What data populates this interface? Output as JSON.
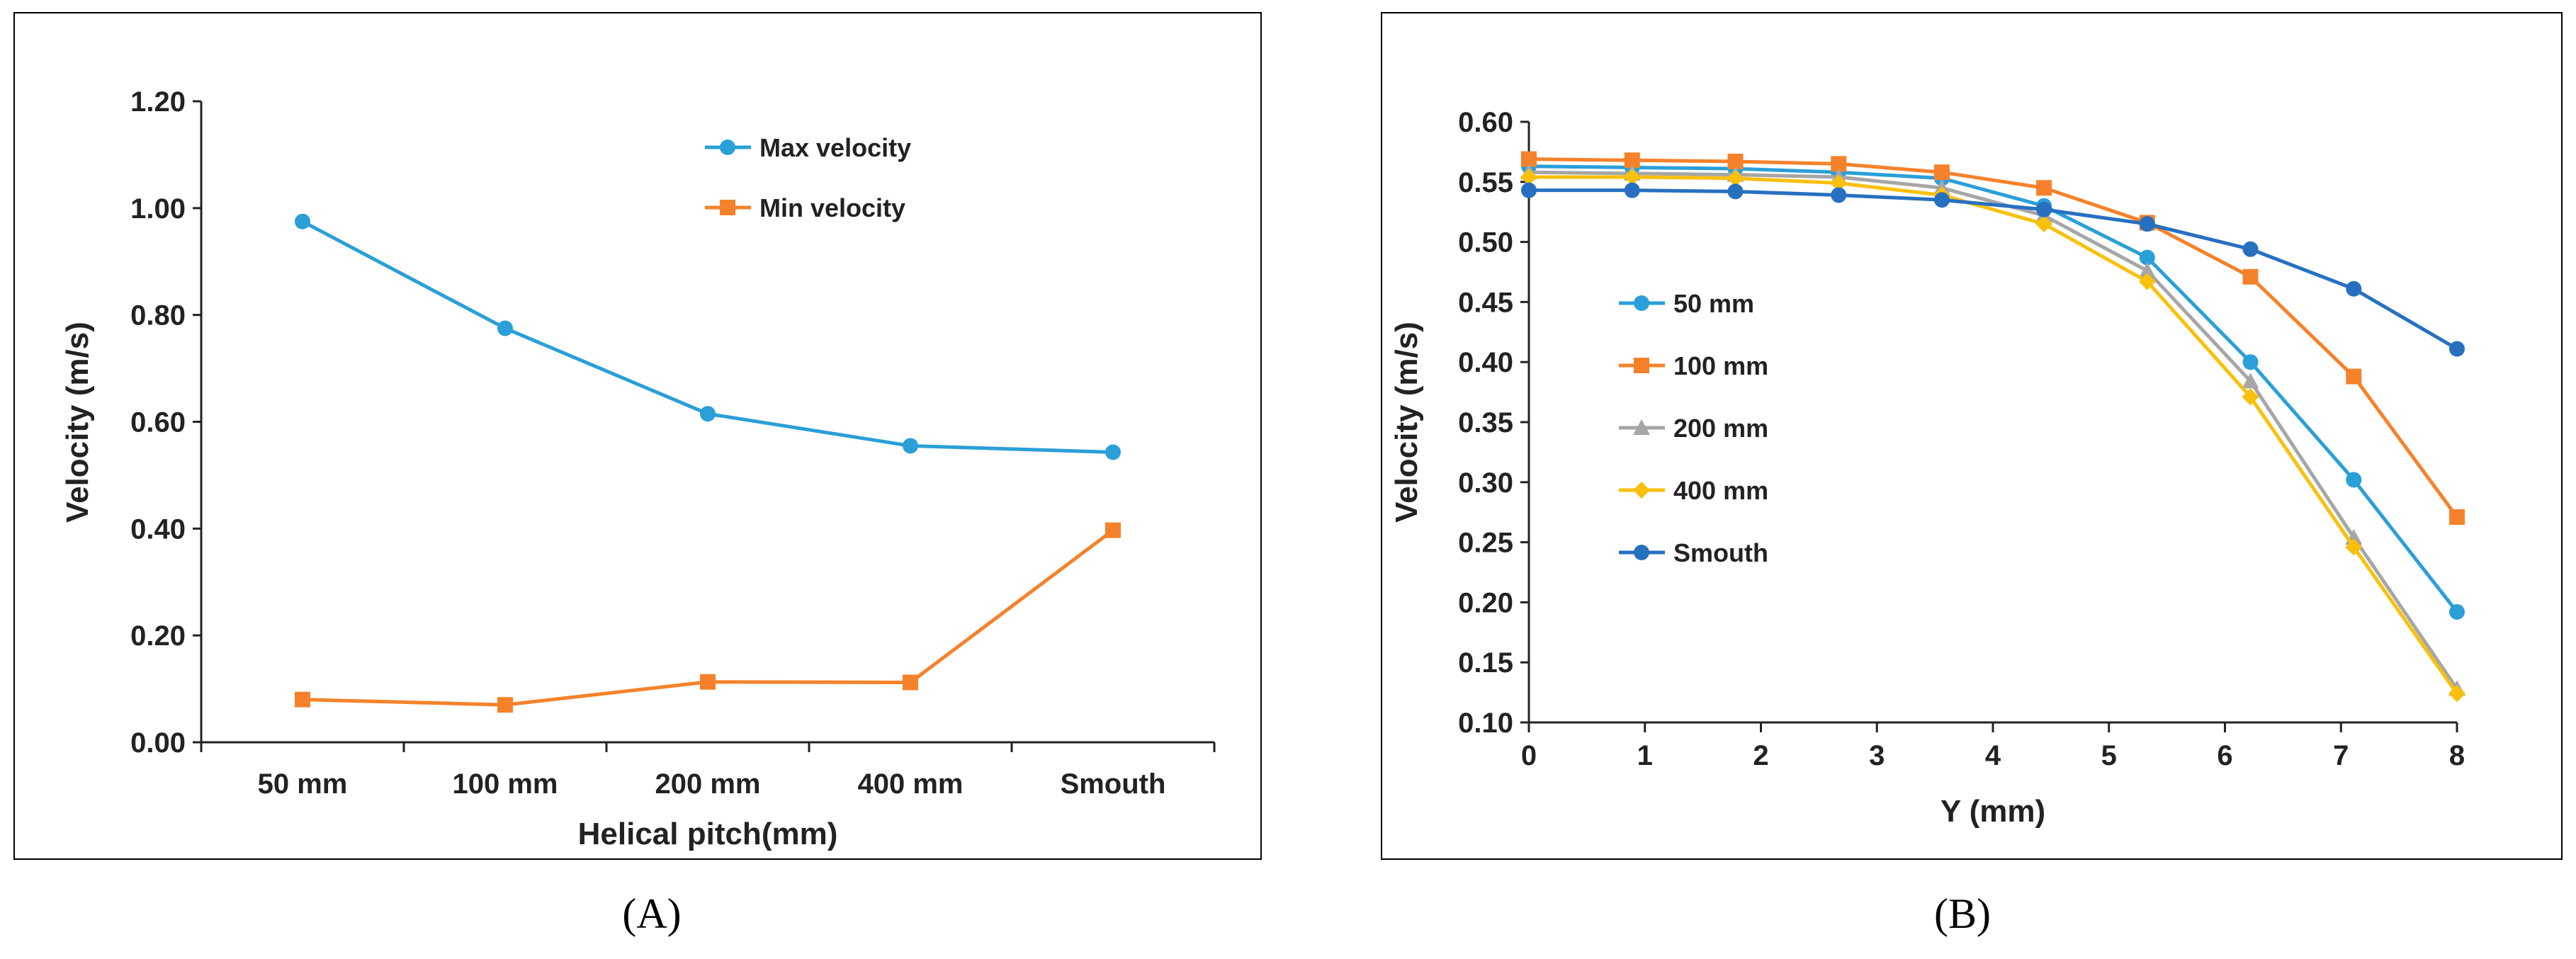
{
  "chart_data": [
    {
      "type": "line",
      "panel_label": "(A)",
      "title": "",
      "xlabel": "Helical pitch(mm)",
      "ylabel": "Velocity (m/s)",
      "categories": [
        "50 mm",
        "100 mm",
        "200 mm",
        "400 mm",
        "Smouth"
      ],
      "ylim": [
        0,
        1.2
      ],
      "yticks": [
        "0.00",
        "0.20",
        "0.40",
        "0.60",
        "0.80",
        "1.00",
        "1.20"
      ],
      "grid": false,
      "legend_position": "top-right",
      "series": [
        {
          "name": "Max velocity",
          "color": "#2a9fd8",
          "marker": "circle",
          "values": [
            0.975,
            0.775,
            0.615,
            0.555,
            0.543
          ]
        },
        {
          "name": "Min velocity",
          "color": "#f5822a",
          "marker": "square",
          "values": [
            0.08,
            0.07,
            0.113,
            0.112,
            0.397
          ]
        }
      ]
    },
    {
      "type": "line",
      "panel_label": "(B)",
      "title": "",
      "xlabel": "Y (mm)",
      "ylabel": "Velocity (m/s)",
      "xlim": [
        0,
        8
      ],
      "xticks": [
        "0",
        "1",
        "2",
        "3",
        "4",
        "5",
        "6",
        "7",
        "8"
      ],
      "ylim": [
        0.1,
        0.6
      ],
      "yticks": [
        "0.10",
        "0.15",
        "0.20",
        "0.25",
        "0.30",
        "0.35",
        "0.40",
        "0.45",
        "0.50",
        "0.55",
        "0.60"
      ],
      "grid": false,
      "legend_position": "left",
      "x": [
        0,
        0.89,
        1.78,
        2.67,
        3.56,
        4.44,
        5.33,
        6.22,
        7.11,
        8.0
      ],
      "series": [
        {
          "name": "50 mm",
          "color": "#2a9fd8",
          "marker": "circle",
          "values": [
            0.563,
            0.562,
            0.561,
            0.558,
            0.553,
            0.53,
            0.487,
            0.4,
            0.302,
            0.192
          ]
        },
        {
          "name": "100 mm",
          "color": "#f5822a",
          "marker": "square",
          "values": [
            0.569,
            0.568,
            0.567,
            0.565,
            0.558,
            0.545,
            0.516,
            0.471,
            0.388,
            0.271
          ]
        },
        {
          "name": "200 mm",
          "color": "#a6a6a6",
          "marker": "triangle",
          "values": [
            0.558,
            0.557,
            0.556,
            0.554,
            0.545,
            0.522,
            0.476,
            0.384,
            0.254,
            0.128
          ]
        },
        {
          "name": "400 mm",
          "color": "#f9c00c",
          "marker": "diamond",
          "values": [
            0.554,
            0.554,
            0.553,
            0.549,
            0.539,
            0.515,
            0.467,
            0.371,
            0.246,
            0.124
          ]
        },
        {
          "name": "Smouth",
          "color": "#2770c0",
          "marker": "circle",
          "values": [
            0.543,
            0.543,
            0.542,
            0.539,
            0.535,
            0.527,
            0.515,
            0.494,
            0.461,
            0.411
          ]
        }
      ]
    }
  ]
}
